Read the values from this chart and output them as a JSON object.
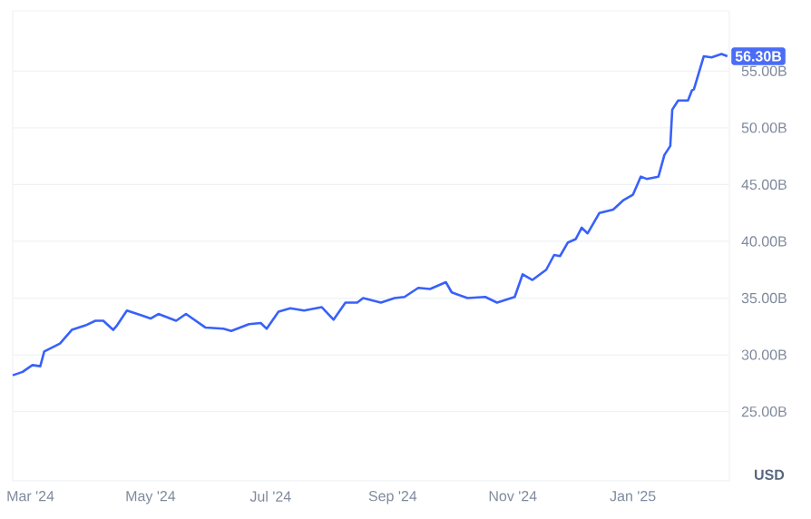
{
  "chart_data": {
    "type": "line",
    "ylabel": "USD",
    "x": [
      "2024-02-21",
      "2024-02-26",
      "2024-03-02",
      "2024-03-06",
      "2024-03-08",
      "2024-03-16",
      "2024-03-22",
      "2024-03-29",
      "2024-04-03",
      "2024-04-07",
      "2024-04-12",
      "2024-04-14",
      "2024-04-19",
      "2024-04-26",
      "2024-05-01",
      "2024-05-05",
      "2024-05-14",
      "2024-05-19",
      "2024-05-29",
      "2024-06-07",
      "2024-06-11",
      "2024-06-20",
      "2024-06-26",
      "2024-06-29",
      "2024-07-05",
      "2024-07-11",
      "2024-07-18",
      "2024-07-27",
      "2024-08-02",
      "2024-08-08",
      "2024-08-14",
      "2024-08-17",
      "2024-08-26",
      "2024-09-02",
      "2024-09-07",
      "2024-09-14",
      "2024-09-20",
      "2024-09-28",
      "2024-10-01",
      "2024-10-09",
      "2024-10-18",
      "2024-10-24",
      "2024-11-02",
      "2024-11-06",
      "2024-11-11",
      "2024-11-18",
      "2024-11-22",
      "2024-11-25",
      "2024-11-29",
      "2024-12-03",
      "2024-12-06",
      "2024-12-09",
      "2024-12-15",
      "2024-12-22",
      "2024-12-27",
      "2025-01-01",
      "2025-01-05",
      "2025-01-08",
      "2025-01-14",
      "2025-01-17",
      "2025-01-20",
      "2025-01-21",
      "2025-01-24",
      "2025-01-29",
      "2025-01-31",
      "2025-02-01",
      "2025-02-06",
      "2025-02-10",
      "2025-02-15",
      "2025-02-18"
    ],
    "series": [
      {
        "color": "#3861fb",
        "values": [
          28.2,
          28.5,
          29.1,
          29.0,
          30.3,
          31.0,
          32.2,
          32.6,
          33.0,
          33.0,
          32.2,
          32.6,
          33.9,
          33.5,
          33.2,
          33.6,
          33.0,
          33.6,
          32.4,
          32.3,
          32.1,
          32.7,
          32.8,
          32.3,
          33.8,
          34.1,
          33.9,
          34.2,
          33.1,
          34.6,
          34.6,
          35.0,
          34.6,
          35.0,
          35.1,
          35.9,
          35.8,
          36.4,
          35.5,
          35.0,
          35.1,
          34.6,
          35.1,
          37.1,
          36.6,
          37.5,
          38.8,
          38.7,
          39.9,
          40.2,
          41.2,
          40.7,
          42.5,
          42.8,
          43.6,
          44.1,
          45.7,
          45.5,
          45.7,
          47.6,
          48.4,
          51.6,
          52.4,
          52.4,
          53.3,
          53.4,
          56.3,
          56.2,
          56.5,
          56.3
        ]
      }
    ],
    "xlim": [
      "2024-02-21",
      "2025-02-19"
    ],
    "xticks": [
      {
        "value": "2024-03-01",
        "label": "Mar '24"
      },
      {
        "value": "2024-05-01",
        "label": "May '24"
      },
      {
        "value": "2024-07-01",
        "label": "Jul '24"
      },
      {
        "value": "2024-09-01",
        "label": "Sep '24"
      },
      {
        "value": "2024-11-01",
        "label": "Nov '24"
      },
      {
        "value": "2025-01-01",
        "label": "Jan '25"
      }
    ],
    "ylim": [
      18.9,
      60.3
    ],
    "yticks": [
      {
        "value": 25,
        "label": "25.00B"
      },
      {
        "value": 30,
        "label": "30.00B"
      },
      {
        "value": 35,
        "label": "35.00B"
      },
      {
        "value": 40,
        "label": "40.00B"
      },
      {
        "value": 45,
        "label": "45.00B"
      },
      {
        "value": 50,
        "label": "50.00B"
      },
      {
        "value": 55,
        "label": "55.00B"
      }
    ],
    "grid": "y",
    "marker": "none",
    "line_style": "solid",
    "annotations": [
      {
        "text": "56.30B",
        "x": "2025-02-18",
        "y": 56.3
      }
    ]
  }
}
